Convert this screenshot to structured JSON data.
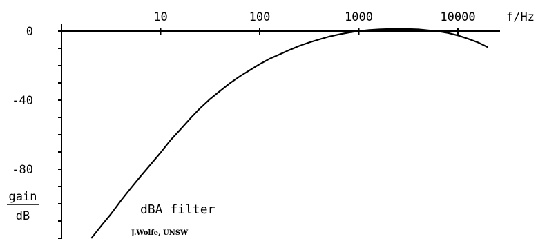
{
  "chart_data": {
    "type": "line",
    "title": "dBA filter",
    "credit": "J.Wolfe, UNSW",
    "xlabel": "f/Hz",
    "ylabel": [
      "gain",
      "dB"
    ],
    "xscale": "log",
    "x_ticks": [
      10,
      100,
      1000,
      10000
    ],
    "x_tick_labels": [
      "10",
      "100",
      "1000",
      "10000"
    ],
    "y_tick_labels": [
      "0",
      "-40",
      "-80"
    ],
    "y_tick_values": [
      0,
      -40,
      -80
    ],
    "y_minor_tick_step": 10,
    "ylim": [
      -120,
      0
    ],
    "xlim": [
      1,
      30000
    ],
    "grid": false,
    "series": [
      {
        "x": [
          2,
          2.5,
          3.15,
          4,
          5,
          6.3,
          8,
          10,
          12.5,
          16,
          20,
          25,
          31.5,
          40,
          50,
          63,
          80,
          100,
          125,
          160,
          200,
          250,
          315,
          400,
          500,
          630,
          800,
          1000,
          1250,
          1600,
          2000,
          2500,
          3150,
          4000,
          5000,
          6300,
          8000,
          10000,
          12500,
          16000,
          20000
        ],
        "values": [
          -120,
          -113,
          -106,
          -98,
          -91,
          -84,
          -77,
          -70.4,
          -63.4,
          -56.7,
          -50.5,
          -44.7,
          -39.4,
          -34.6,
          -30.2,
          -26.2,
          -22.5,
          -19.1,
          -16.1,
          -13.4,
          -10.9,
          -8.6,
          -6.6,
          -4.8,
          -3.2,
          -1.9,
          -0.8,
          0,
          0.6,
          1.0,
          1.2,
          1.3,
          1.2,
          1.0,
          0.5,
          -0.1,
          -1.1,
          -2.5,
          -4.3,
          -6.6,
          -9.3
        ]
      }
    ]
  }
}
